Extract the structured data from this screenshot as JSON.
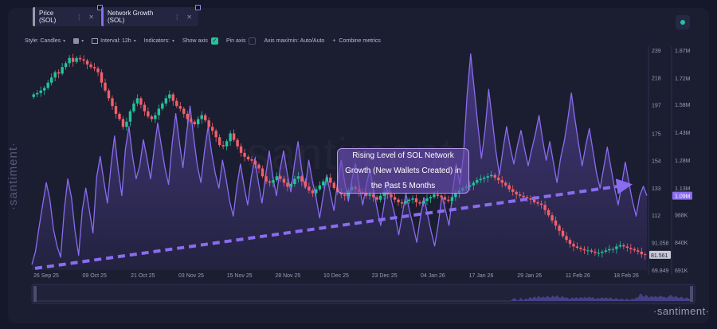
{
  "tabs": [
    {
      "label": "Price (SOL)",
      "color": "#9a9cae",
      "more": "⋮",
      "close": "✕"
    },
    {
      "label": "Network Growth (SOL)",
      "color": "#8a6cf0",
      "more": "⋮",
      "close": "✕"
    }
  ],
  "toolbar": {
    "style_label": "Style: Candles",
    "interval_label": "Interval: 12h",
    "indicators_label": "Indicators:",
    "show_axis_label": "Show axis",
    "pin_axis_label": "Pin axis",
    "axis_minmax_label": "Axis max/min: Auto/Auto",
    "combine_label": "Combine metrics",
    "plus": "+",
    "chevron": "▾"
  },
  "brand": {
    "side": "·santiment·",
    "bottom": "·santiment·",
    "watermark": "santiment"
  },
  "annotation": "Rising Level of SOL Network Growth (New Wallets Created) in the Past 5 Months",
  "chart_data": {
    "type": "line",
    "x_labels": [
      "26 Sep 25",
      "09 Oct 25",
      "21 Oct 25",
      "03 Nov 25",
      "15 Nov 25",
      "28 Nov 25",
      "10 Dec 25",
      "23 Dec 25",
      "04 Jan 26",
      "17 Jan 26",
      "29 Jan 26",
      "11 Feb 26",
      "18 Feb 26"
    ],
    "price_axis": {
      "ticks": [
        "239",
        "218",
        "197",
        "175",
        "154",
        "133",
        "112",
        "91.058",
        "69.849"
      ],
      "min": 69.849,
      "max": 239,
      "current": "81.561",
      "current_value": 81.561
    },
    "growth_axis": {
      "ticks": [
        "1.87M",
        "1.72M",
        "1.58M",
        "1.43M",
        "1.28M",
        "1.13M",
        "988K",
        "840K",
        "691K"
      ],
      "min": 691000,
      "max": 1870000,
      "current": "1.09M",
      "current_value": 1090000
    },
    "series": [
      {
        "name": "Price (SOL)",
        "style": "candles",
        "color_up": "#26c29a",
        "color_down": "#f0606a",
        "values": [
          205,
          206,
          208,
          210,
          214,
          218,
          222,
          221,
          226,
          229,
          233,
          230,
          233,
          232,
          231,
          228,
          226,
          225,
          222,
          214,
          208,
          202,
          196,
          190,
          186,
          180,
          184,
          192,
          198,
          202,
          197,
          192,
          188,
          186,
          189,
          194,
          198,
          202,
          205,
          200,
          196,
          194,
          190,
          186,
          184,
          182,
          186,
          189,
          185,
          180,
          177,
          172,
          166,
          165,
          169,
          175,
          170,
          165,
          160,
          157,
          155,
          154,
          151,
          148,
          142,
          138,
          137,
          139,
          142,
          140,
          137,
          134,
          136,
          140,
          142,
          138,
          134,
          131,
          129,
          132,
          135,
          138,
          141,
          137,
          133,
          130,
          128,
          127,
          131,
          134,
          132,
          130,
          129,
          127,
          128,
          126,
          124,
          127,
          130,
          128,
          126,
          124,
          122,
          121,
          123,
          124,
          125,
          122,
          121,
          123,
          125,
          126,
          128,
          127,
          126,
          124,
          123,
          126,
          129,
          131,
          133,
          134,
          135,
          137,
          139,
          140,
          141,
          142,
          143,
          141,
          139,
          137,
          135,
          132,
          130,
          128,
          127,
          126,
          125,
          124,
          122,
          121,
          120,
          116,
          112,
          108,
          104,
          100,
          96,
          93,
          90,
          88,
          87,
          86,
          85,
          85,
          84,
          83,
          83,
          84,
          85,
          86,
          86,
          88,
          89,
          88,
          87,
          86,
          85,
          84,
          82,
          81.561
        ]
      },
      {
        "name": "Network Growth (SOL)",
        "style": "line-area",
        "color": "#8a6cf0",
        "values": [
          720000,
          790000,
          920000,
          1040000,
          1160000,
          1070000,
          910000,
          820000,
          760000,
          1010000,
          1180000,
          1080000,
          900000,
          770000,
          1010000,
          1130000,
          1010000,
          890000,
          1190000,
          1300000,
          1170000,
          1050000,
          1250000,
          1410000,
          1230000,
          1090000,
          1340000,
          1460000,
          1300000,
          1180000,
          1250000,
          1390000,
          1290000,
          1180000,
          1340000,
          1480000,
          1360000,
          1240000,
          1150000,
          1370000,
          1530000,
          1380000,
          1240000,
          1420000,
          1570000,
          1400000,
          1250000,
          1160000,
          1330000,
          1460000,
          1320000,
          1210000,
          1130000,
          1280000,
          1180000,
          1060000,
          980000,
          1140000,
          1260000,
          1140000,
          1040000,
          1190000,
          1290000,
          1160000,
          1050000,
          1200000,
          1330000,
          1190000,
          1090000,
          1230000,
          1330000,
          1210000,
          1110000,
          1260000,
          1380000,
          1230000,
          1130000,
          1280000,
          1170000,
          1080000,
          970000,
          1090000,
          1200000,
          1100000,
          1010000,
          1160000,
          1280000,
          1160000,
          1060000,
          1180000,
          1260000,
          1150000,
          1040000,
          1150000,
          1230000,
          1120000,
          1020000,
          930000,
          1050000,
          1170000,
          1060000,
          980000,
          880000,
          990000,
          1100000,
          1010000,
          930000,
          840000,
          970000,
          1080000,
          990000,
          900000,
          820000,
          940000,
          1090000,
          1010000,
          930000,
          1110000,
          1260000,
          1150000,
          1310000,
          1630000,
          1850000,
          1660000,
          1470000,
          1290000,
          1440000,
          1660000,
          1500000,
          1330000,
          1200000,
          1340000,
          1460000,
          1350000,
          1260000,
          1360000,
          1440000,
          1340000,
          1250000,
          1340000,
          1420000,
          1520000,
          1390000,
          1280000,
          1380000,
          1270000,
          1160000,
          1290000,
          1380000,
          1500000,
          1640000,
          1500000,
          1370000,
          1250000,
          1360000,
          1450000,
          1330000,
          1210000,
          1130000,
          1240000,
          1350000,
          1240000,
          1130000,
          1040000,
          1150000,
          1270000,
          1160000,
          1060000,
          980000,
          1090000,
          1140000,
          1090000
        ]
      }
    ],
    "trendline": {
      "from_value": 700000,
      "to_value": 1140000,
      "color": "#8a6cf0",
      "style": "dashed-arrow"
    }
  }
}
